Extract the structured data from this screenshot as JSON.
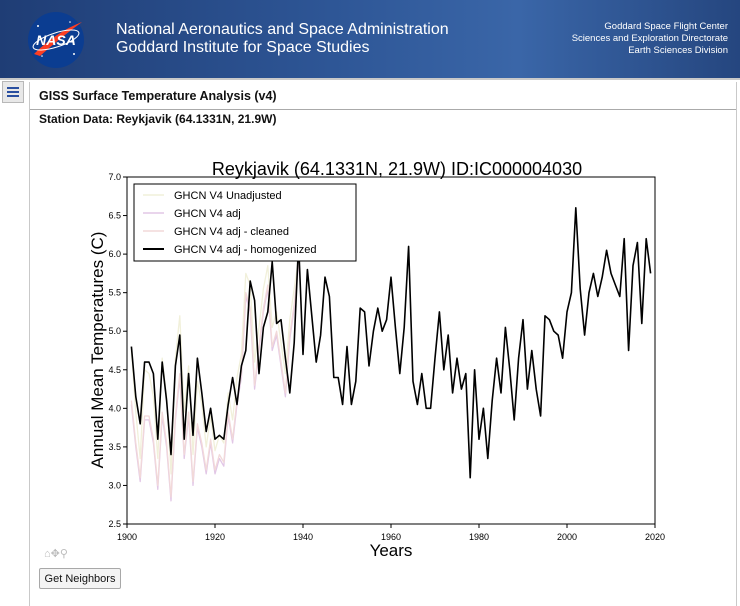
{
  "header": {
    "logo_text": "NASA",
    "org_line1": "National Aeronautics and Space Administration",
    "org_line2": "Goddard Institute for Space Studies",
    "right_lines": [
      "Goddard Space Flight Center",
      "Sciences and Exploration Directorate",
      "Earth Sciences Division"
    ]
  },
  "menu": {
    "icon": "hamburger-menu-icon"
  },
  "page": {
    "title": "GISS Surface Temperature Analysis (v4)",
    "station_heading": "Station Data: Reykjavik (64.1331N, 21.9W)"
  },
  "toolbar": {
    "icons": [
      "home-icon",
      "pan-icon",
      "zoom-icon"
    ]
  },
  "buttons": {
    "get_neighbors": "Get Neighbors"
  },
  "chart_data": {
    "type": "line",
    "title": "Reykjavik (64.1331N, 21.9W) ID:IC000004030",
    "xlabel": "Years",
    "ylabel": "Annual Mean Temperatures (C)",
    "xlim": [
      1900,
      2020
    ],
    "ylim": [
      2.5,
      7.0
    ],
    "xticks": [
      1900,
      1920,
      1940,
      1960,
      1980,
      2000,
      2020
    ],
    "yticks": [
      "2.5",
      "3.0",
      "3.5",
      "4.0",
      "4.5",
      "5.0",
      "5.5",
      "6.0",
      "6.5",
      "7.0"
    ],
    "legend_position": "top-left",
    "series": [
      {
        "name": "GHCN V4 Unadjusted",
        "color": "#f1f0da",
        "x": [
          1901,
          1902,
          1903,
          1904,
          1905,
          1906,
          1907,
          1908,
          1909,
          1910,
          1911,
          1912,
          1913,
          1914,
          1915,
          1916,
          1917,
          1918,
          1919,
          1920,
          1921,
          1922,
          1923,
          1924,
          1925,
          1926,
          1927,
          1928,
          1929,
          1930,
          1931,
          1932,
          1933,
          1934,
          1935,
          1936,
          1937,
          1938,
          1939
        ],
        "values": [
          4.75,
          3.95,
          3.35,
          4.5,
          4.45,
          4.15,
          3.35,
          4.65,
          4.15,
          3.15,
          4.65,
          5.2,
          3.95,
          4.55,
          3.4,
          4.35,
          4.05,
          3.5,
          3.9,
          3.45,
          3.65,
          3.55,
          4.2,
          3.85,
          4.4,
          4.7,
          5.75,
          5.6,
          4.6,
          5.05,
          5.55,
          5.85,
          5.05,
          5.25,
          4.85,
          4.45,
          5.15,
          5.55,
          5.95
        ]
      },
      {
        "name": "GHCN V4 adj",
        "color": "#e2c7e6",
        "x": [
          1901,
          1902,
          1903,
          1904,
          1905,
          1906,
          1907,
          1908,
          1909,
          1910,
          1911,
          1912,
          1913,
          1914,
          1915,
          1916,
          1917,
          1918,
          1919,
          1920,
          1921,
          1922,
          1923,
          1924,
          1925,
          1926,
          1927,
          1928,
          1929,
          1930,
          1931,
          1932,
          1933,
          1934,
          1935,
          1936,
          1937,
          1938,
          1939
        ],
        "values": [
          4.05,
          3.5,
          3.05,
          3.85,
          3.85,
          3.55,
          2.95,
          3.9,
          3.5,
          2.8,
          3.85,
          4.4,
          3.35,
          3.9,
          3.0,
          3.75,
          3.5,
          3.15,
          3.55,
          3.15,
          3.35,
          3.25,
          3.9,
          3.55,
          4.05,
          4.4,
          5.45,
          5.25,
          4.25,
          4.75,
          5.25,
          5.55,
          4.75,
          4.95,
          4.55,
          4.15,
          4.9,
          5.3,
          5.85
        ]
      },
      {
        "name": "GHCN V4 adj - cleaned",
        "color": "#f2d9d9",
        "x": [
          1901,
          1902,
          1903,
          1904,
          1905,
          1906,
          1907,
          1908,
          1909,
          1910,
          1911,
          1912,
          1913,
          1914,
          1915,
          1916,
          1917,
          1918,
          1919,
          1920,
          1921,
          1922,
          1923,
          1924,
          1925,
          1926,
          1927,
          1928,
          1929,
          1930,
          1931,
          1932,
          1933,
          1934,
          1935,
          1936,
          1937,
          1938,
          1939
        ],
        "values": [
          4.1,
          3.55,
          3.1,
          3.9,
          3.9,
          3.6,
          3.0,
          3.95,
          3.55,
          2.85,
          3.9,
          4.45,
          3.4,
          3.95,
          3.05,
          3.8,
          3.55,
          3.2,
          3.6,
          3.2,
          3.4,
          3.3,
          3.95,
          3.6,
          4.1,
          4.45,
          5.5,
          5.3,
          4.3,
          4.8,
          5.3,
          5.6,
          4.8,
          5.0,
          4.6,
          4.2,
          4.95,
          5.35,
          5.9
        ]
      },
      {
        "name": "GHCN V4 adj - homogenized",
        "color": "#000000",
        "x": [
          1901,
          1902,
          1903,
          1904,
          1905,
          1906,
          1907,
          1908,
          1909,
          1910,
          1911,
          1912,
          1913,
          1914,
          1915,
          1916,
          1917,
          1918,
          1919,
          1920,
          1921,
          1922,
          1923,
          1924,
          1925,
          1926,
          1927,
          1928,
          1929,
          1930,
          1931,
          1932,
          1933,
          1934,
          1935,
          1936,
          1937,
          1938,
          1939,
          1940,
          1941,
          1942,
          1943,
          1944,
          1945,
          1946,
          1947,
          1948,
          1949,
          1950,
          1951,
          1952,
          1953,
          1954,
          1955,
          1956,
          1957,
          1958,
          1959,
          1960,
          1961,
          1962,
          1963,
          1964,
          1965,
          1966,
          1967,
          1968,
          1969,
          1970,
          1971,
          1972,
          1973,
          1974,
          1975,
          1976,
          1977,
          1978,
          1979,
          1980,
          1981,
          1982,
          1983,
          1984,
          1985,
          1986,
          1987,
          1988,
          1989,
          1990,
          1991,
          1992,
          1993,
          1994,
          1995,
          1996,
          1997,
          1998,
          1999,
          2000,
          2001,
          2002,
          2003,
          2004,
          2005,
          2006,
          2007,
          2008,
          2009,
          2010,
          2011,
          2012,
          2013,
          2014,
          2015,
          2016,
          2017,
          2018,
          2019
        ],
        "values": [
          4.8,
          4.15,
          3.8,
          4.6,
          4.6,
          4.45,
          3.6,
          4.6,
          4.1,
          3.4,
          4.55,
          4.95,
          3.6,
          4.45,
          3.65,
          4.65,
          4.2,
          3.7,
          4.0,
          3.6,
          3.65,
          3.6,
          4.05,
          4.4,
          4.05,
          4.55,
          4.75,
          5.65,
          5.4,
          4.45,
          5.05,
          5.25,
          5.9,
          5.1,
          5.15,
          4.65,
          4.2,
          4.85,
          6.15,
          4.7,
          5.8,
          5.2,
          4.6,
          4.95,
          5.7,
          5.45,
          4.4,
          4.4,
          4.05,
          4.8,
          4.05,
          4.35,
          5.3,
          5.25,
          4.55,
          5.0,
          5.3,
          5.0,
          5.15,
          5.7,
          5.05,
          4.45,
          5.05,
          6.1,
          4.35,
          4.05,
          4.45,
          4.0,
          4.0,
          4.65,
          5.25,
          4.5,
          4.95,
          4.2,
          4.65,
          4.25,
          4.45,
          3.1,
          4.5,
          3.6,
          4.0,
          3.35,
          4.1,
          4.65,
          4.2,
          5.05,
          4.5,
          3.85,
          4.65,
          5.15,
          4.25,
          4.75,
          4.25,
          3.9,
          5.2,
          5.15,
          5.0,
          4.95,
          4.65,
          5.25,
          5.5,
          6.6,
          5.55,
          4.95,
          5.5,
          5.75,
          5.45,
          5.7,
          6.05,
          5.75,
          5.6,
          5.45,
          6.2,
          4.75,
          5.85,
          6.15,
          5.1,
          6.2,
          5.75
        ]
      }
    ]
  }
}
